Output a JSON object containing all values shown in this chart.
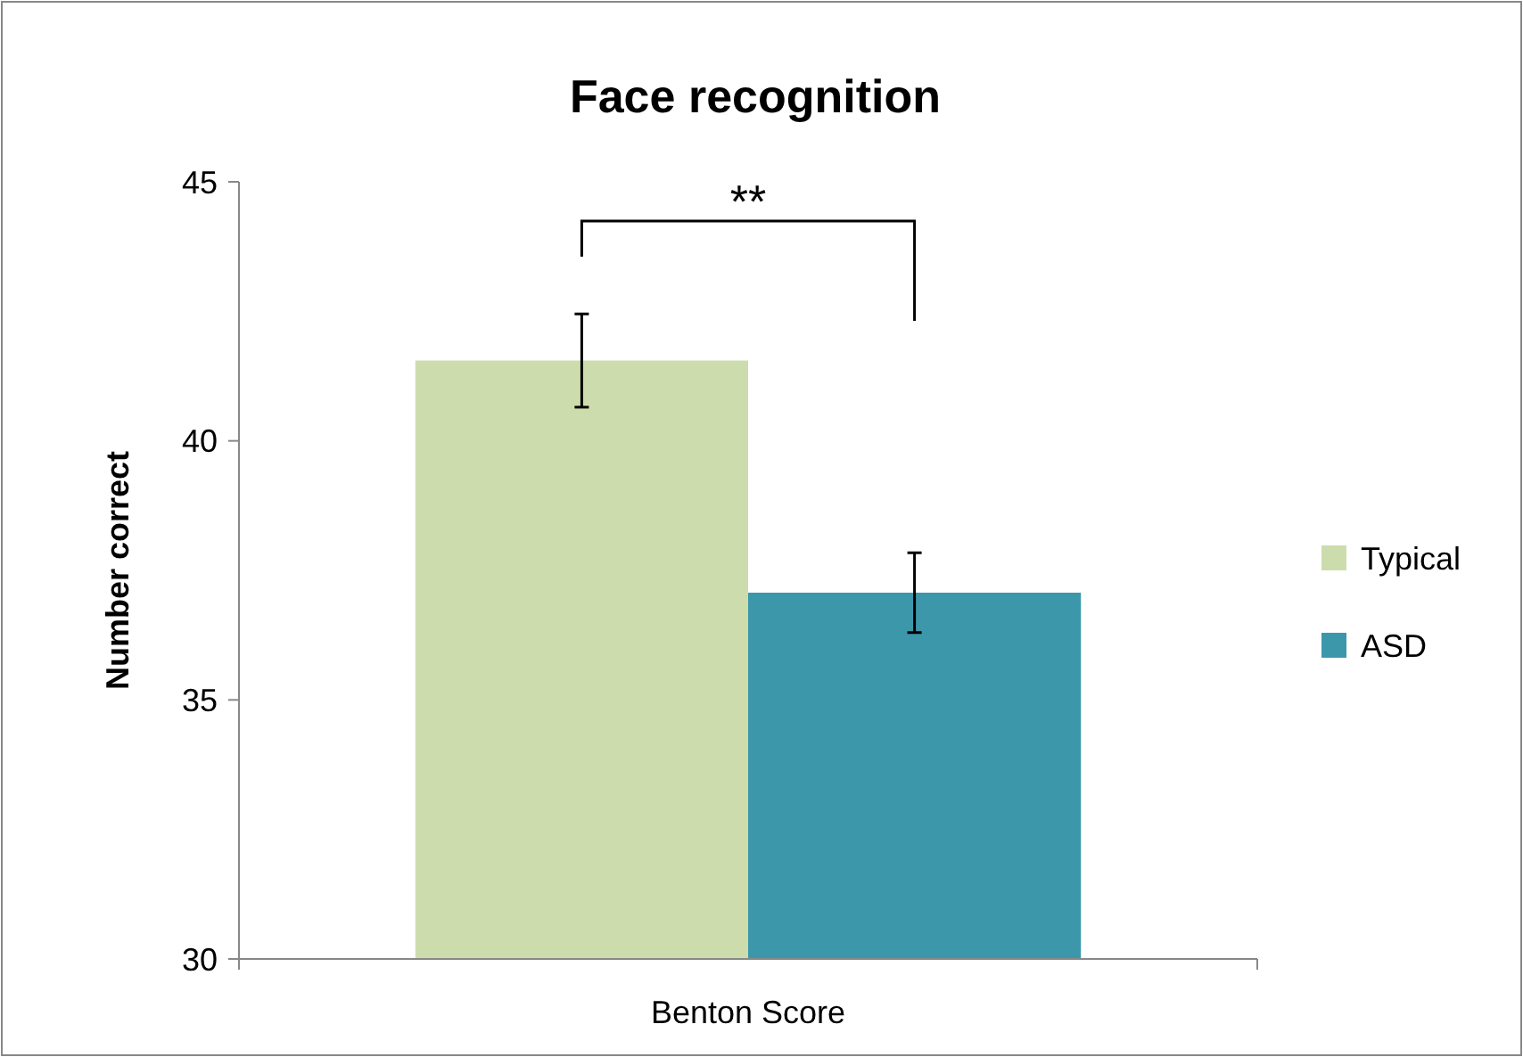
{
  "chart_data": {
    "type": "bar",
    "title": "Face recognition",
    "ylabel": "Number correct",
    "categories": [
      "Benton Score"
    ],
    "series": [
      {
        "name": "Typical",
        "color": "#cddcac",
        "values": [
          41.55
        ],
        "errors": [
          0.9
        ]
      },
      {
        "name": "ASD",
        "color": "#3c97ab",
        "values": [
          37.07
        ],
        "errors": [
          0.77
        ]
      }
    ],
    "ylim": [
      30,
      45
    ],
    "yticks": [
      30,
      35,
      40,
      45
    ],
    "grid": false,
    "legend": "right",
    "annotations": [
      "**"
    ]
  }
}
